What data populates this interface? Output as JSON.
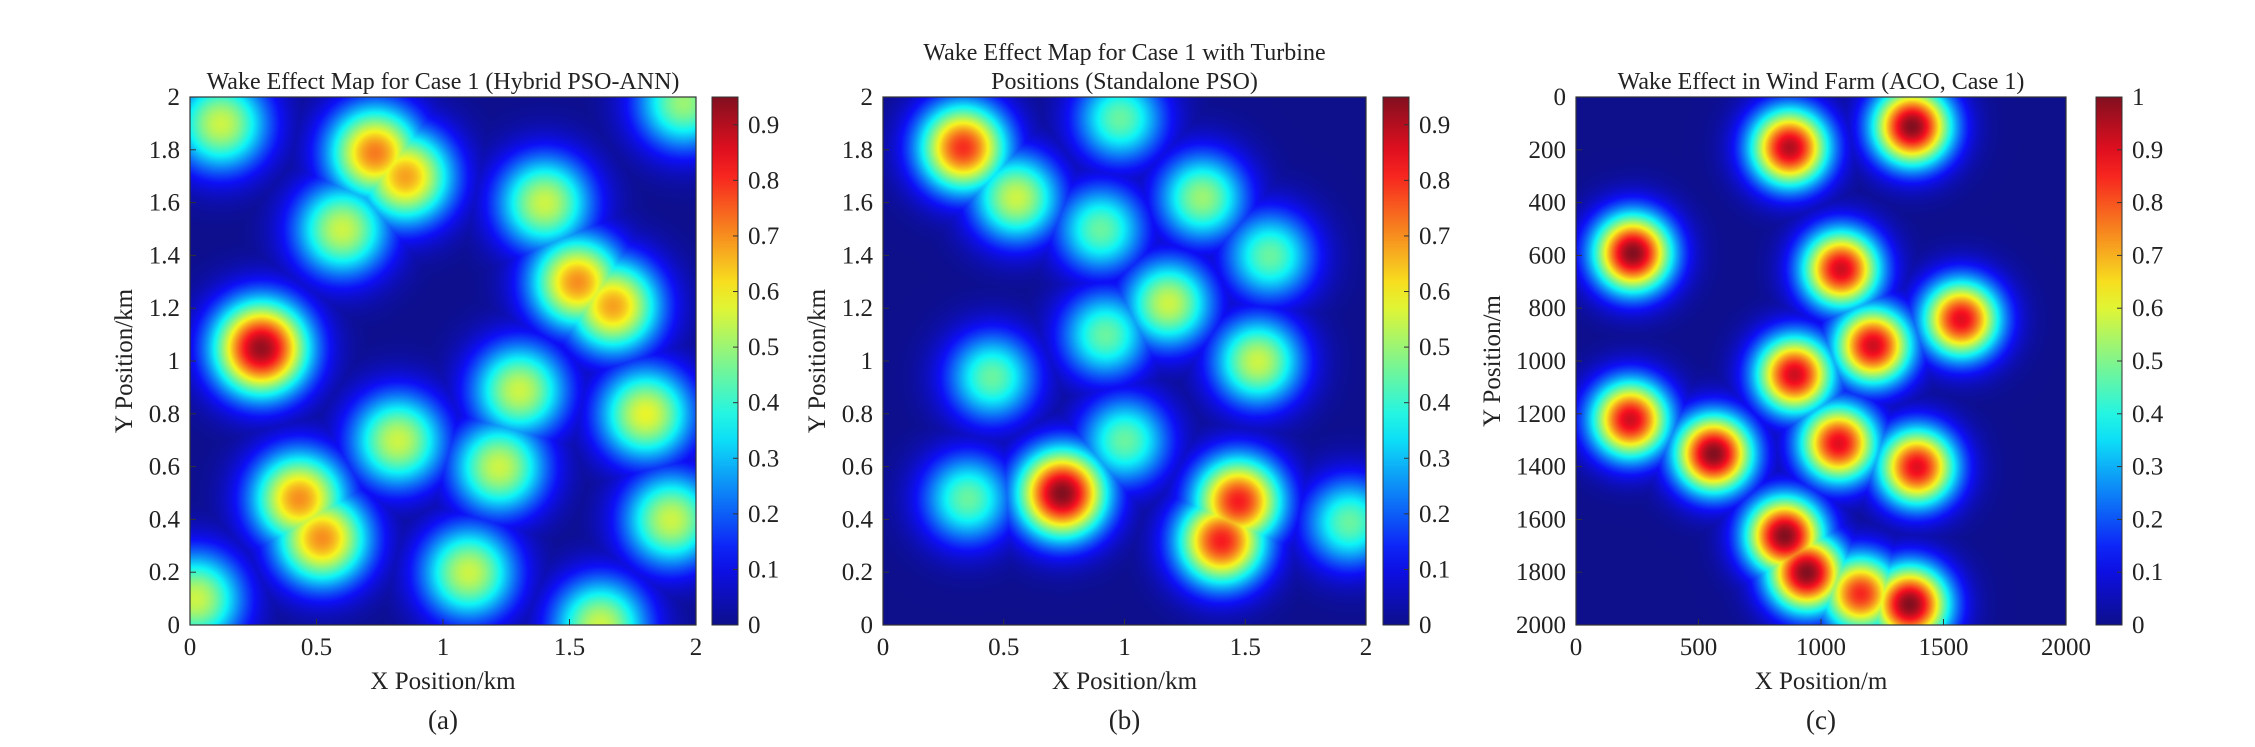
{
  "figure": {
    "panels": [
      {
        "title_lines": [
          "Wake Effect Map for Case 1 (Hybrid PSO-ANN)"
        ],
        "xlabel": "X Position/km",
        "ylabel": "Y Position/km",
        "caption": "(a)"
      },
      {
        "title_lines": [
          "Wake Effect Map for Case 1 with Turbine",
          "Positions (Standalone PSO)"
        ],
        "xlabel": "X Position/km",
        "ylabel": "Y Position/km",
        "caption": "(b)"
      },
      {
        "title_lines": [
          "Wake Effect in Wind Farm (ACO, Case 1)"
        ],
        "xlabel": "X Position/m",
        "ylabel": "Y Position/m",
        "caption": "(c)"
      }
    ]
  },
  "chart_data": [
    {
      "type": "heatmap",
      "title": "Wake Effect Map for Case 1 (Hybrid PSO-ANN)",
      "xlabel": "X Position/km",
      "ylabel": "Y Position/km",
      "xlim": [
        0,
        2
      ],
      "ylim": [
        0,
        2
      ],
      "y_direction": "normal",
      "x_ticks": [
        0,
        0.5,
        1,
        1.5,
        2
      ],
      "x_tick_labels": [
        "0",
        "0.5",
        "1",
        "1.5",
        "2"
      ],
      "y_ticks": [
        0,
        0.2,
        0.4,
        0.6,
        0.8,
        1,
        1.2,
        1.4,
        1.6,
        1.8,
        2
      ],
      "y_tick_labels": [
        "0",
        "0.2",
        "0.4",
        "0.6",
        "0.8",
        "1",
        "1.2",
        "1.4",
        "1.6",
        "1.8",
        "2"
      ],
      "colorbar": {
        "min": 0,
        "max": 0.95,
        "ticks": [
          0,
          0.1,
          0.2,
          0.3,
          0.4,
          0.5,
          0.6,
          0.7,
          0.8,
          0.9
        ],
        "tick_labels": [
          "0",
          "0.1",
          "0.2",
          "0.3",
          "0.4",
          "0.5",
          "0.6",
          "0.7",
          "0.8",
          "0.9"
        ]
      },
      "grid": false,
      "peaks": [
        {
          "x": 0.12,
          "y": 1.9,
          "value": 0.55
        },
        {
          "x": 1.95,
          "y": 1.98,
          "value": 0.5
        },
        {
          "x": 0.73,
          "y": 1.79,
          "value": 0.72
        },
        {
          "x": 0.85,
          "y": 1.7,
          "value": 0.68
        },
        {
          "x": 0.6,
          "y": 1.5,
          "value": 0.55
        },
        {
          "x": 1.4,
          "y": 1.6,
          "value": 0.55
        },
        {
          "x": 1.53,
          "y": 1.3,
          "value": 0.7
        },
        {
          "x": 1.67,
          "y": 1.21,
          "value": 0.68
        },
        {
          "x": 0.28,
          "y": 1.05,
          "value": 0.93
        },
        {
          "x": 1.3,
          "y": 0.89,
          "value": 0.55
        },
        {
          "x": 1.8,
          "y": 0.8,
          "value": 0.58
        },
        {
          "x": 0.82,
          "y": 0.7,
          "value": 0.55
        },
        {
          "x": 1.22,
          "y": 0.6,
          "value": 0.55
        },
        {
          "x": 0.43,
          "y": 0.48,
          "value": 0.7
        },
        {
          "x": 0.52,
          "y": 0.33,
          "value": 0.7
        },
        {
          "x": 1.9,
          "y": 0.4,
          "value": 0.55
        },
        {
          "x": 1.1,
          "y": 0.2,
          "value": 0.55
        },
        {
          "x": 0.02,
          "y": 0.1,
          "value": 0.55
        },
        {
          "x": 1.62,
          "y": 0.0,
          "value": 0.55
        }
      ]
    },
    {
      "type": "heatmap",
      "title": "Wake Effect Map for Case 1 with Turbine Positions (Standalone PSO)",
      "xlabel": "X Position/km",
      "ylabel": "Y Position/km",
      "xlim": [
        0,
        2
      ],
      "ylim": [
        0,
        2
      ],
      "y_direction": "normal",
      "x_ticks": [
        0,
        0.5,
        1,
        1.5,
        2
      ],
      "x_tick_labels": [
        "0",
        "0.5",
        "1",
        "1.5",
        "2"
      ],
      "y_ticks": [
        0,
        0.2,
        0.4,
        0.6,
        0.8,
        1,
        1.2,
        1.4,
        1.6,
        1.8,
        2
      ],
      "y_tick_labels": [
        "0",
        "0.2",
        "0.4",
        "0.6",
        "0.8",
        "1",
        "1.2",
        "1.4",
        "1.6",
        "1.8",
        "2"
      ],
      "colorbar": {
        "min": 0,
        "max": 0.95,
        "ticks": [
          0,
          0.1,
          0.2,
          0.3,
          0.4,
          0.5,
          0.6,
          0.7,
          0.8,
          0.9
        ],
        "tick_labels": [
          "0",
          "0.1",
          "0.2",
          "0.3",
          "0.4",
          "0.5",
          "0.6",
          "0.7",
          "0.8",
          "0.9"
        ]
      },
      "grid": false,
      "peaks": [
        {
          "x": 0.33,
          "y": 1.81,
          "value": 0.8
        },
        {
          "x": 0.55,
          "y": 1.62,
          "value": 0.55
        },
        {
          "x": 0.98,
          "y": 1.92,
          "value": 0.45
        },
        {
          "x": 1.32,
          "y": 1.62,
          "value": 0.5
        },
        {
          "x": 0.9,
          "y": 1.5,
          "value": 0.45
        },
        {
          "x": 1.6,
          "y": 1.4,
          "value": 0.45
        },
        {
          "x": 1.18,
          "y": 1.22,
          "value": 0.55
        },
        {
          "x": 0.92,
          "y": 1.1,
          "value": 0.45
        },
        {
          "x": 1.55,
          "y": 1.0,
          "value": 0.55
        },
        {
          "x": 0.45,
          "y": 0.94,
          "value": 0.45
        },
        {
          "x": 1.0,
          "y": 0.7,
          "value": 0.45
        },
        {
          "x": 0.35,
          "y": 0.48,
          "value": 0.45
        },
        {
          "x": 0.74,
          "y": 0.5,
          "value": 0.95
        },
        {
          "x": 1.47,
          "y": 0.47,
          "value": 0.82
        },
        {
          "x": 1.4,
          "y": 0.32,
          "value": 0.82
        },
        {
          "x": 1.93,
          "y": 0.39,
          "value": 0.45
        }
      ]
    },
    {
      "type": "heatmap",
      "title": "Wake Effect in Wind Farm (ACO, Case 1)",
      "xlabel": "X Position/m",
      "ylabel": "Y Position/m",
      "xlim": [
        0,
        2000
      ],
      "ylim": [
        0,
        2000
      ],
      "y_direction": "reverse",
      "x_ticks": [
        0,
        500,
        1000,
        1500,
        2000
      ],
      "x_tick_labels": [
        "0",
        "500",
        "1000",
        "1500",
        "2000"
      ],
      "y_ticks": [
        0,
        200,
        400,
        600,
        800,
        1000,
        1200,
        1400,
        1600,
        1800,
        2000
      ],
      "y_tick_labels": [
        "0",
        "200",
        "400",
        "600",
        "800",
        "1000",
        "1200",
        "1400",
        "1600",
        "1800",
        "2000"
      ],
      "colorbar": {
        "min": 0,
        "max": 1,
        "ticks": [
          0,
          0.1,
          0.2,
          0.3,
          0.4,
          0.5,
          0.6,
          0.7,
          0.8,
          0.9,
          1
        ],
        "tick_labels": [
          "0",
          "0.1",
          "0.2",
          "0.3",
          "0.4",
          "0.5",
          "0.6",
          "0.7",
          "0.8",
          "0.9",
          "1"
        ]
      },
      "grid": false,
      "peaks": [
        {
          "x": 1370,
          "y": 110,
          "value": 1.0
        },
        {
          "x": 870,
          "y": 190,
          "value": 0.95
        },
        {
          "x": 230,
          "y": 590,
          "value": 1.0
        },
        {
          "x": 1080,
          "y": 650,
          "value": 0.92
        },
        {
          "x": 1570,
          "y": 840,
          "value": 0.9
        },
        {
          "x": 1210,
          "y": 940,
          "value": 0.92
        },
        {
          "x": 890,
          "y": 1050,
          "value": 0.92
        },
        {
          "x": 220,
          "y": 1220,
          "value": 0.92
        },
        {
          "x": 1070,
          "y": 1310,
          "value": 0.9
        },
        {
          "x": 560,
          "y": 1350,
          "value": 1.0
        },
        {
          "x": 1390,
          "y": 1400,
          "value": 0.9
        },
        {
          "x": 850,
          "y": 1660,
          "value": 1.0
        },
        {
          "x": 940,
          "y": 1800,
          "value": 1.0
        },
        {
          "x": 1160,
          "y": 1880,
          "value": 0.85
        },
        {
          "x": 1360,
          "y": 1920,
          "value": 1.0
        }
      ]
    }
  ]
}
